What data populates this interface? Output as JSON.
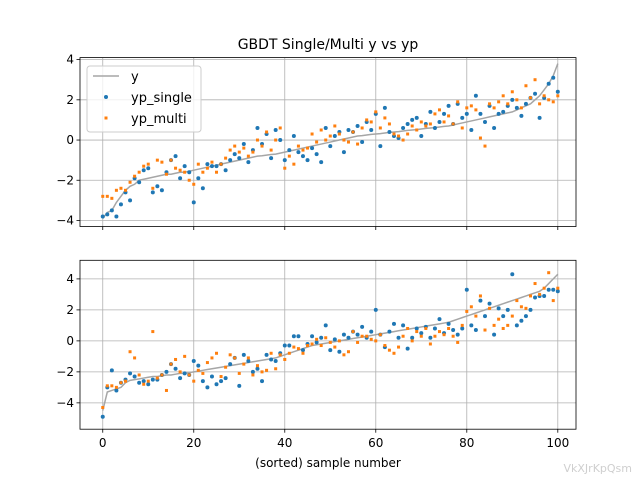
{
  "watermark": "VkXJrKpQsm",
  "chart_data": [
    {
      "type": "scatter",
      "title": "GBDT Single/Multi y vs yp",
      "xlabel": "",
      "ylabel": "",
      "xlim": [
        -5,
        104
      ],
      "ylim": [
        -4.3,
        4.1
      ],
      "xticks": [
        0,
        20,
        40,
        60,
        80,
        100
      ],
      "yticks": [
        -4,
        -2,
        0,
        2,
        4
      ],
      "show_xtick_labels": false,
      "grid": true,
      "legend_position": "top-left",
      "series": [
        {
          "name": "y",
          "kind": "line",
          "color": "#a6a6a6",
          "values": [
            -3.9,
            -3.6,
            -3.5,
            -3.1,
            -2.8,
            -2.5,
            -2.3,
            -2.2,
            -2.0,
            -1.95,
            -1.9,
            -1.85,
            -1.8,
            -1.75,
            -1.7,
            -1.7,
            -1.65,
            -1.6,
            -1.6,
            -1.55,
            -1.5,
            -1.45,
            -1.4,
            -1.35,
            -1.3,
            -1.25,
            -1.2,
            -1.15,
            -1.1,
            -1.05,
            -1.0,
            -0.95,
            -0.9,
            -0.85,
            -0.8,
            -0.78,
            -0.75,
            -0.72,
            -0.7,
            -0.65,
            -0.6,
            -0.55,
            -0.5,
            -0.45,
            -0.4,
            -0.35,
            -0.3,
            -0.25,
            -0.2,
            -0.15,
            -0.1,
            -0.05,
            0.0,
            0.05,
            0.1,
            0.15,
            0.2,
            0.22,
            0.25,
            0.28,
            0.3,
            0.32,
            0.35,
            0.38,
            0.4,
            0.42,
            0.45,
            0.48,
            0.5,
            0.52,
            0.55,
            0.58,
            0.6,
            0.62,
            0.65,
            0.68,
            0.7,
            0.75,
            0.8,
            0.85,
            0.9,
            0.95,
            1.0,
            1.05,
            1.1,
            1.15,
            1.2,
            1.25,
            1.3,
            1.35,
            1.4,
            1.5,
            1.6,
            1.7,
            1.8,
            2.0,
            2.2,
            2.5,
            2.8,
            3.2,
            3.8
          ]
        },
        {
          "name": "yp_single",
          "kind": "points",
          "color": "#1f77b4",
          "marker": "circle",
          "values": [
            -3.8,
            -3.7,
            -3.5,
            -3.8,
            -3.2,
            -2.6,
            -3.0,
            -1.9,
            -2.1,
            -1.5,
            -1.4,
            -2.6,
            -2.3,
            -2.5,
            -1.6,
            -1.0,
            -0.8,
            -1.9,
            -1.3,
            -1.6,
            -3.1,
            -1.9,
            -2.4,
            -1.2,
            -1.3,
            -1.3,
            -1.2,
            -1.5,
            -1.0,
            -0.7,
            -0.9,
            -0.2,
            -1.1,
            -0.5,
            0.6,
            -0.2,
            0.3,
            -0.9,
            0.5,
            0.0,
            -1.0,
            -0.5,
            0.2,
            -0.6,
            -0.8,
            -1.0,
            -0.4,
            -0.7,
            -1.1,
            0.6,
            -0.3,
            0.2,
            0.4,
            -0.6,
            0.5,
            0.4,
            0.7,
            -0.1,
            0.9,
            0.5,
            1.3,
            -0.3,
            1.6,
            0.4,
            0.2,
            0.1,
            0.6,
            0.8,
            1.0,
            1.1,
            0.2,
            0.8,
            1.4,
            0.6,
            0.9,
            1.3,
            1.7,
            0.8,
            1.8,
            1.1,
            1.3,
            0.5,
            2.2,
            1.3,
            0.9,
            1.7,
            0.6,
            1.3,
            1.4,
            1.7,
            2.0,
            1.6,
            1.2,
            1.8,
            2.1,
            2.3,
            1.1,
            2.1,
            2.8,
            3.1,
            2.4
          ]
        },
        {
          "name": "yp_multi",
          "kind": "points",
          "color": "#ff7f0e",
          "marker": "square",
          "values": [
            -2.8,
            -2.8,
            -2.9,
            -2.5,
            -2.4,
            -2.5,
            -2.1,
            -1.8,
            -1.6,
            -1.3,
            -1.2,
            -2.4,
            -1.0,
            -1.1,
            -1.7,
            -1.0,
            -1.4,
            -1.5,
            -1.6,
            -2.0,
            -2.2,
            -1.2,
            -1.6,
            -1.4,
            -1.1,
            -1.6,
            -1.2,
            -0.9,
            -0.5,
            -0.3,
            -0.6,
            -0.4,
            -0.8,
            -0.6,
            0.0,
            -0.3,
            0.4,
            -0.5,
            0.0,
            0.6,
            -1.4,
            -0.8,
            -1.2,
            -0.3,
            -0.5,
            -0.4,
            0.3,
            -0.1,
            0.5,
            0.0,
            0.2,
            0.7,
            0.3,
            0.0,
            -0.1,
            0.4,
            -0.2,
            0.6,
            1.0,
            0.9,
            1.4,
            0.6,
            1.1,
            0.8,
            0.3,
            0.2,
            0.0,
            0.3,
            0.7,
            0.5,
            0.9,
            0.7,
            0.8,
            1.3,
            1.5,
            0.9,
            1.2,
            0.8,
            1.9,
            0.6,
            1.6,
            1.7,
            1.5,
            0.1,
            -0.3,
            1.8,
            1.6,
            1.9,
            2.2,
            1.8,
            2.4,
            2.0,
            1.6,
            2.7,
            2.1,
            3.0,
            1.8,
            2.2,
            2.0,
            1.9,
            2.2
          ]
        }
      ]
    },
    {
      "type": "scatter",
      "title": "",
      "xlabel": "(sorted) sample number",
      "ylabel": "",
      "xlim": [
        -5,
        104
      ],
      "ylim": [
        -5.7,
        5.2
      ],
      "xticks": [
        0,
        20,
        40,
        60,
        80,
        100
      ],
      "yticks": [
        -4,
        -2,
        0,
        2,
        4
      ],
      "show_xtick_labels": true,
      "grid": true,
      "series": [
        {
          "name": "y",
          "kind": "line",
          "color": "#a6a6a6",
          "values": [
            -4.5,
            -3.3,
            -3.2,
            -3.1,
            -3.0,
            -2.7,
            -2.55,
            -2.5,
            -2.45,
            -2.4,
            -2.35,
            -2.3,
            -2.3,
            -2.25,
            -2.2,
            -2.2,
            -2.15,
            -2.1,
            -2.1,
            -2.05,
            -2.0,
            -1.95,
            -1.9,
            -1.85,
            -1.8,
            -1.75,
            -1.7,
            -1.65,
            -1.6,
            -1.55,
            -1.5,
            -1.45,
            -1.4,
            -1.35,
            -1.3,
            -1.25,
            -1.2,
            -1.15,
            -1.1,
            -1.0,
            -0.9,
            -0.8,
            -0.7,
            -0.6,
            -0.5,
            -0.4,
            -0.3,
            -0.25,
            -0.2,
            -0.15,
            -0.1,
            -0.05,
            0.0,
            0.05,
            0.1,
            0.15,
            0.2,
            0.25,
            0.3,
            0.35,
            0.4,
            0.45,
            0.5,
            0.55,
            0.6,
            0.65,
            0.7,
            0.75,
            0.8,
            0.85,
            0.9,
            0.95,
            1.0,
            1.05,
            1.1,
            1.15,
            1.2,
            1.3,
            1.4,
            1.5,
            1.6,
            1.7,
            1.8,
            1.9,
            2.0,
            2.1,
            2.2,
            2.3,
            2.4,
            2.5,
            2.6,
            2.7,
            2.8,
            2.9,
            3.0,
            3.1,
            3.2,
            3.4,
            3.7,
            4.0,
            4.3
          ]
        },
        {
          "name": "yp_single",
          "kind": "points",
          "color": "#1f77b4",
          "marker": "circle",
          "values": [
            -4.9,
            -3.0,
            -1.9,
            -3.2,
            -2.7,
            -2.5,
            -2.1,
            -2.3,
            -2.7,
            -2.6,
            -2.8,
            -2.5,
            -2.5,
            -2.2,
            -2.0,
            -1.5,
            -1.8,
            -2.4,
            -2.1,
            -2.2,
            -1.3,
            -1.6,
            -2.6,
            -3.0,
            -2.3,
            -2.8,
            -2.6,
            -2.4,
            -1.5,
            -1.1,
            -2.9,
            -0.9,
            -1.3,
            -2.0,
            -1.8,
            -2.6,
            -0.9,
            -1.2,
            -1.3,
            -0.8,
            -0.3,
            -0.3,
            0.3,
            0.3,
            -0.6,
            -0.2,
            0.3,
            -0.1,
            0.2,
            1.0,
            -0.6,
            0.1,
            -0.7,
            0.4,
            0.2,
            0.6,
            0.4,
            0.9,
            0.2,
            0.6,
            2.0,
            0.4,
            -0.4,
            0.6,
            1.1,
            0.2,
            1.0,
            -0.5,
            0.2,
            0.8,
            0.5,
            0.9,
            0.2,
            0.8,
            1.4,
            0.5,
            1.1,
            0.7,
            0.4,
            0.8,
            3.3,
            1.0,
            0.7,
            2.6,
            1.6,
            2.4,
            0.4,
            2.1,
            1.6,
            2.0,
            4.3,
            1.0,
            1.3,
            1.6,
            2.0,
            2.8,
            2.9,
            2.9,
            3.3,
            3.3,
            3.2
          ]
        },
        {
          "name": "yp_multi",
          "kind": "points",
          "color": "#ff7f0e",
          "marker": "square",
          "values": [
            -4.3,
            -2.9,
            -2.9,
            -3.0,
            -2.7,
            -2.6,
            -0.7,
            -1.1,
            -2.2,
            -2.8,
            -2.6,
            0.6,
            -2.4,
            -2.2,
            -3.2,
            -1.5,
            -1.2,
            -2.0,
            -1.0,
            -2.2,
            -2.6,
            -1.9,
            -2.1,
            -1.4,
            -1.1,
            -0.8,
            -2.3,
            -1.7,
            -0.9,
            -1.1,
            -2.1,
            -1.5,
            -1.1,
            -2.2,
            -1.6,
            -2.0,
            -1.9,
            -0.8,
            -1.8,
            -0.9,
            -1.2,
            -0.8,
            -0.4,
            -0.5,
            -0.8,
            -0.3,
            -0.2,
            0.1,
            -0.3,
            0.2,
            -0.1,
            -0.4,
            0.0,
            -0.9,
            -0.7,
            0.6,
            -0.1,
            0.3,
            0.3,
            0.1,
            0.0,
            0.4,
            -0.3,
            -0.6,
            -0.8,
            -0.4,
            0.3,
            0.8,
            0.0,
            0.6,
            0.3,
            0.8,
            -0.2,
            0.3,
            0.6,
            0.4,
            0.8,
            0.3,
            -0.1,
            1.0,
            1.9,
            2.2,
            1.6,
            2.9,
            0.7,
            2.1,
            1.0,
            1.4,
            0.8,
            1.0,
            1.6,
            2.6,
            2.2,
            2.1,
            2.9,
            3.7,
            3.0,
            3.4,
            4.4,
            2.6,
            3.4
          ]
        }
      ]
    }
  ]
}
